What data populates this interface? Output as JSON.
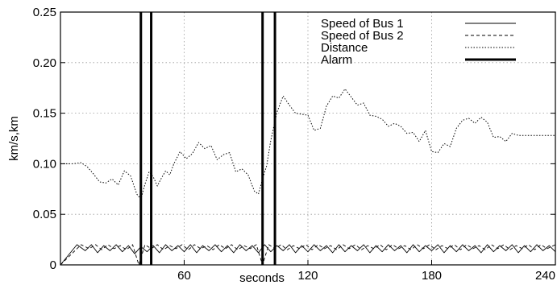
{
  "chart_data": {
    "type": "line",
    "xlabel": "seconds",
    "ylabel": "km/s,km",
    "xlim": [
      0,
      240
    ],
    "ylim": [
      0,
      0.25
    ],
    "x_ticks": [
      60,
      120,
      180,
      240
    ],
    "x_tick_labels": [
      "60",
      "120",
      "180",
      "240"
    ],
    "y_ticks": [
      0,
      0.05,
      0.1,
      0.15,
      0.2,
      0.25
    ],
    "y_tick_labels": [
      "0",
      "0.05",
      "0.10",
      "0.15",
      "0.20",
      "0.25"
    ],
    "grid": true,
    "legend_position": "top-right",
    "series": [
      {
        "name": "Speed of Bus 1",
        "style": "solid",
        "x": [
          0,
          8,
          12,
          15,
          18,
          21,
          24,
          27,
          30,
          33,
          36,
          39,
          42,
          45,
          48,
          51,
          54,
          57,
          60,
          63,
          66,
          69,
          72,
          75,
          78,
          81,
          84,
          87,
          90,
          93,
          96,
          99,
          102,
          105,
          108,
          111,
          114,
          117,
          120,
          123,
          126,
          129,
          132,
          135,
          138,
          141,
          144,
          147,
          150,
          153,
          156,
          159,
          162,
          165,
          168,
          171,
          174,
          177,
          180,
          183,
          186,
          189,
          192,
          195,
          198,
          201,
          204,
          207,
          210,
          213,
          216,
          219,
          222,
          225,
          228,
          231,
          234,
          237,
          240
        ],
        "values": [
          0,
          0.02,
          0.014,
          0.02,
          0.012,
          0.019,
          0.014,
          0.02,
          0.013,
          0.019,
          0.011,
          0.018,
          0.013,
          0.019,
          0.012,
          0.02,
          0.014,
          0.019,
          0.013,
          0.02,
          0.012,
          0.019,
          0.014,
          0.02,
          0.013,
          0.019,
          0.012,
          0.02,
          0.014,
          0.019,
          0.012,
          0.02,
          0.013,
          0.019,
          0.014,
          0.02,
          0.012,
          0.019,
          0.013,
          0.02,
          0.014,
          0.019,
          0.012,
          0.02,
          0.013,
          0.019,
          0.014,
          0.02,
          0.012,
          0.019,
          0.013,
          0.02,
          0.014,
          0.019,
          0.012,
          0.02,
          0.013,
          0.019,
          0.014,
          0.02,
          0.012,
          0.019,
          0.013,
          0.02,
          0.014,
          0.019,
          0.012,
          0.02,
          0.013,
          0.019,
          0.014,
          0.02,
          0.012,
          0.019,
          0.013,
          0.02,
          0.014,
          0.019,
          0.013
        ]
      },
      {
        "name": "Speed of Bus 2",
        "style": "dashed",
        "x": [
          0,
          10,
          14,
          17,
          20,
          23,
          26,
          29,
          32,
          35,
          38,
          41,
          44,
          47,
          50,
          53,
          56,
          59,
          62,
          65,
          68,
          71,
          74,
          77,
          80,
          83,
          86,
          89,
          92,
          95,
          98,
          101,
          104,
          107,
          110,
          113,
          116,
          119,
          122,
          125,
          128,
          131,
          134,
          137,
          140,
          143,
          146,
          149,
          152,
          155,
          158,
          161,
          164,
          167,
          170,
          173,
          176,
          179,
          182,
          185,
          188,
          191,
          194,
          197,
          200,
          203,
          206,
          209,
          212,
          215,
          218,
          221,
          224,
          227,
          230,
          233,
          236,
          240
        ],
        "values": [
          0,
          0.02,
          0.016,
          0.02,
          0.015,
          0.02,
          0.016,
          0.019,
          0.015,
          0.02,
          0.0,
          0.02,
          0.016,
          0.02,
          0.015,
          0.019,
          0.016,
          0.02,
          0.015,
          0.02,
          0.016,
          0.019,
          0.015,
          0.02,
          0.016,
          0.02,
          0.015,
          0.019,
          0.016,
          0.02,
          0.0,
          0.02,
          0.016,
          0.02,
          0.015,
          0.019,
          0.016,
          0.02,
          0.015,
          0.02,
          0.016,
          0.019,
          0.015,
          0.02,
          0.016,
          0.02,
          0.015,
          0.019,
          0.016,
          0.02,
          0.015,
          0.02,
          0.016,
          0.019,
          0.015,
          0.02,
          0.016,
          0.02,
          0.015,
          0.019,
          0.016,
          0.02,
          0.015,
          0.02,
          0.016,
          0.019,
          0.015,
          0.02,
          0.016,
          0.02,
          0.015,
          0.019,
          0.016,
          0.02,
          0.015,
          0.02,
          0.016,
          0.02
        ]
      },
      {
        "name": "Distance",
        "style": "dotted",
        "x": [
          0,
          6,
          10,
          13,
          16,
          19,
          22,
          25,
          28,
          31,
          34,
          37,
          39,
          41,
          43,
          45,
          47,
          49,
          51,
          53,
          55,
          58,
          61,
          64,
          67,
          70,
          73,
          76,
          79,
          82,
          85,
          88,
          91,
          94,
          96,
          98,
          100,
          102,
          105,
          108,
          111,
          114,
          117,
          120,
          123,
          126,
          129,
          132,
          135,
          138,
          141,
          144,
          147,
          150,
          153,
          156,
          159,
          162,
          165,
          168,
          171,
          174,
          177,
          180,
          183,
          186,
          189,
          192,
          195,
          198,
          201,
          204,
          207,
          210,
          213,
          216,
          219,
          222,
          225,
          228,
          231,
          234,
          237,
          240
        ],
        "values": [
          0.1,
          0.1,
          0.101,
          0.097,
          0.09,
          0.082,
          0.081,
          0.085,
          0.079,
          0.093,
          0.088,
          0.07,
          0.065,
          0.08,
          0.092,
          0.087,
          0.078,
          0.086,
          0.093,
          0.089,
          0.1,
          0.112,
          0.105,
          0.11,
          0.121,
          0.115,
          0.118,
          0.104,
          0.109,
          0.111,
          0.092,
          0.095,
          0.089,
          0.073,
          0.07,
          0.085,
          0.098,
          0.123,
          0.151,
          0.167,
          0.158,
          0.15,
          0.149,
          0.148,
          0.133,
          0.135,
          0.157,
          0.167,
          0.165,
          0.174,
          0.166,
          0.158,
          0.16,
          0.148,
          0.147,
          0.144,
          0.137,
          0.14,
          0.137,
          0.13,
          0.131,
          0.122,
          0.133,
          0.112,
          0.111,
          0.12,
          0.117,
          0.135,
          0.143,
          0.145,
          0.14,
          0.146,
          0.141,
          0.126,
          0.127,
          0.122,
          0.13,
          0.128,
          0.128,
          0.128,
          0.128,
          0.128,
          0.128,
          0.128
        ]
      },
      {
        "name": "Alarm",
        "style": "thick",
        "x": [
          39,
          44,
          98,
          104
        ]
      }
    ]
  }
}
